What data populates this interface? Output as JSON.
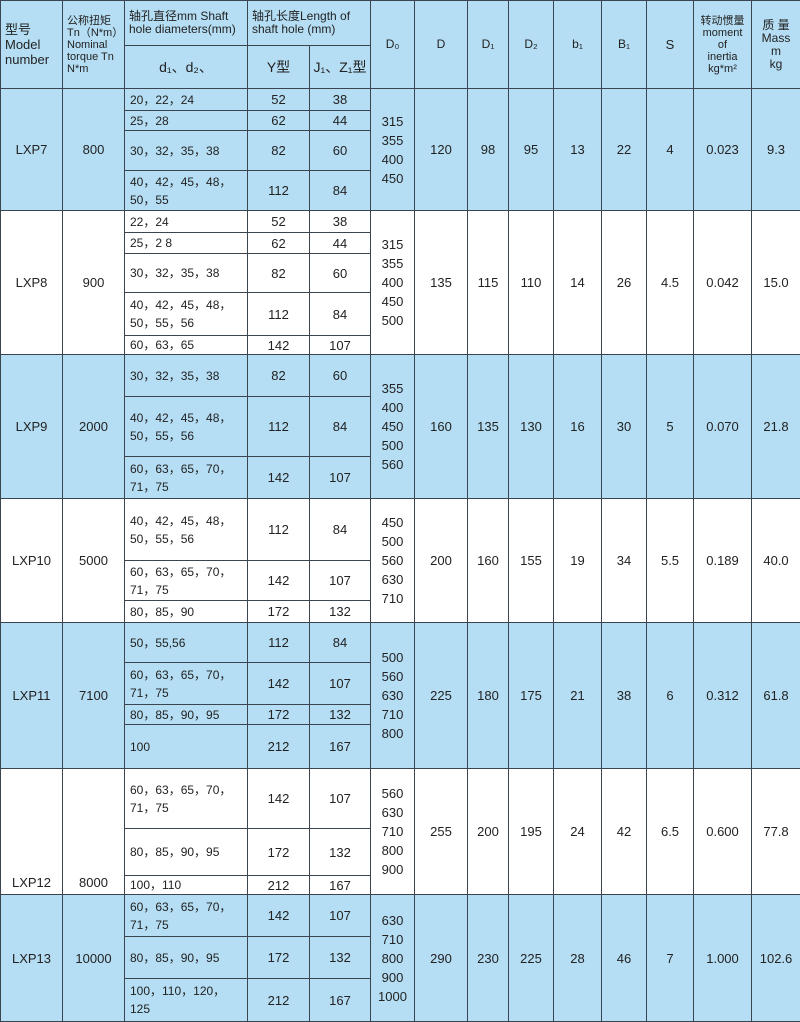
{
  "header": {
    "model": "型号\nModel\nnumber",
    "torque": "公称扭矩\nTn（N*m）\nNominal\ntorque Tn\nN*m",
    "shaft_dia": "轴孔直径mm Shaft\nhole diameters(mm)",
    "shaft_len": "轴孔长度Length of\nshaft hole (mm)",
    "d12": "d₁、d₂、",
    "y": "Y型",
    "j1z1": "J₁、Z₁型",
    "D0": "D₀",
    "D": "D",
    "D1": "D₁",
    "D2": "D₂",
    "b1": "b₁",
    "B1": "B₁",
    "S": "S",
    "inertia": "转动惯量\nmoment\nof\ninertia\nkg*m²",
    "mass": "质 量\nMass\nm\nkg"
  },
  "rows": [
    {
      "model": "LXP7",
      "torque": "800",
      "D0": "315\n355\n400\n450",
      "D": "120",
      "D1": "98",
      "D2": "95",
      "b1": "13",
      "B1": "22",
      "S": "4",
      "inertia": "0.023",
      "mass": "9.3",
      "sub": [
        [
          "20，22，24",
          "52",
          "38"
        ],
        [
          "25，28",
          "62",
          "44"
        ],
        [
          "30，32，35，38",
          "82",
          "60"
        ],
        [
          "40，42，45，48，\n50，55",
          "112",
          "84"
        ]
      ]
    },
    {
      "model": "LXP8",
      "torque": "900",
      "D0": "315\n355\n400\n450\n500",
      "D": "135",
      "D1": "115",
      "D2": "110",
      "b1": "14",
      "B1": "26",
      "S": "4.5",
      "inertia": "0.042",
      "mass": "15.0",
      "sub": [
        [
          "22，24",
          "52",
          "38"
        ],
        [
          "25，2 8",
          "62",
          "44"
        ],
        [
          "30，32，35，38",
          "82",
          "60"
        ],
        [
          "40，42，45，48，\n50，55，56",
          "112",
          "84"
        ],
        [
          "60，63，65",
          "142",
          "107"
        ]
      ]
    },
    {
      "model": "LXP9",
      "torque": "2000",
      "D0": "355\n400\n450\n500\n560",
      "D": "160",
      "D1": "135",
      "D2": "130",
      "b1": "16",
      "B1": "30",
      "S": "5",
      "inertia": "0.070",
      "mass": "21.8",
      "sub": [
        [
          "30，32，35，38",
          "82",
          "60"
        ],
        [
          "40，42，45，48，\n50，55，56",
          "112",
          "84"
        ],
        [
          "60，63，65，70，\n71，75",
          "142",
          "107"
        ]
      ]
    },
    {
      "model": "LXP10",
      "torque": "5000",
      "D0": "450\n500\n560\n630\n710",
      "D": "200",
      "D1": "160",
      "D2": "155",
      "b1": "19",
      "B1": "34",
      "S": "5.5",
      "inertia": "0.189",
      "mass": "40.0",
      "sub": [
        [
          "40，42，45，48，\n50，55，56",
          "112",
          "84"
        ],
        [
          "60，63，65，70，\n71，75",
          "142",
          "107"
        ],
        [
          "80，85，90",
          "172",
          "132"
        ]
      ]
    },
    {
      "model": "LXP11",
      "torque": "7100",
      "D0": "500\n560\n630\n710\n800",
      "D": "225",
      "D1": "180",
      "D2": "175",
      "b1": "21",
      "B1": "38",
      "S": "6",
      "inertia": "0.312",
      "mass": "61.8",
      "sub": [
        [
          "50，55,56",
          "112",
          "84"
        ],
        [
          "60，63，65，70，\n71，75",
          "142",
          "107"
        ],
        [
          "80，85，90，95",
          "172",
          "132"
        ],
        [
          "100",
          "212",
          "167"
        ]
      ]
    },
    {
      "model": "LXP12",
      "torque": "8000",
      "D0": "560\n630\n710\n800\n900",
      "D": "255",
      "D1": "200",
      "D2": "195",
      "b1": "24",
      "B1": "42",
      "S": "6.5",
      "inertia": "0.600",
      "mass": "77.8",
      "sub": [
        [
          "60，63，65，70，\n71，75",
          "142",
          "107"
        ],
        [
          "80，85，90，95",
          "172",
          "132"
        ],
        [
          "100，110",
          "212",
          "167"
        ]
      ]
    },
    {
      "model": "LXP13",
      "torque": "10000",
      "D0": "630\n710\n800\n900\n1000",
      "D": "290",
      "D1": "230",
      "D2": "225",
      "b1": "28",
      "B1": "46",
      "S": "7",
      "inertia": "1.000",
      "mass": "102.6",
      "sub": [
        [
          "60，63，65，70，\n71，75",
          "142",
          "107"
        ],
        [
          "80，85，90，95",
          "172",
          "132"
        ],
        [
          "100，110，120，\n125",
          "212",
          "167"
        ]
      ]
    }
  ],
  "colors": {
    "row_blue": "#b5def4",
    "row_white": "#ffffff",
    "border": "#3a4550"
  }
}
